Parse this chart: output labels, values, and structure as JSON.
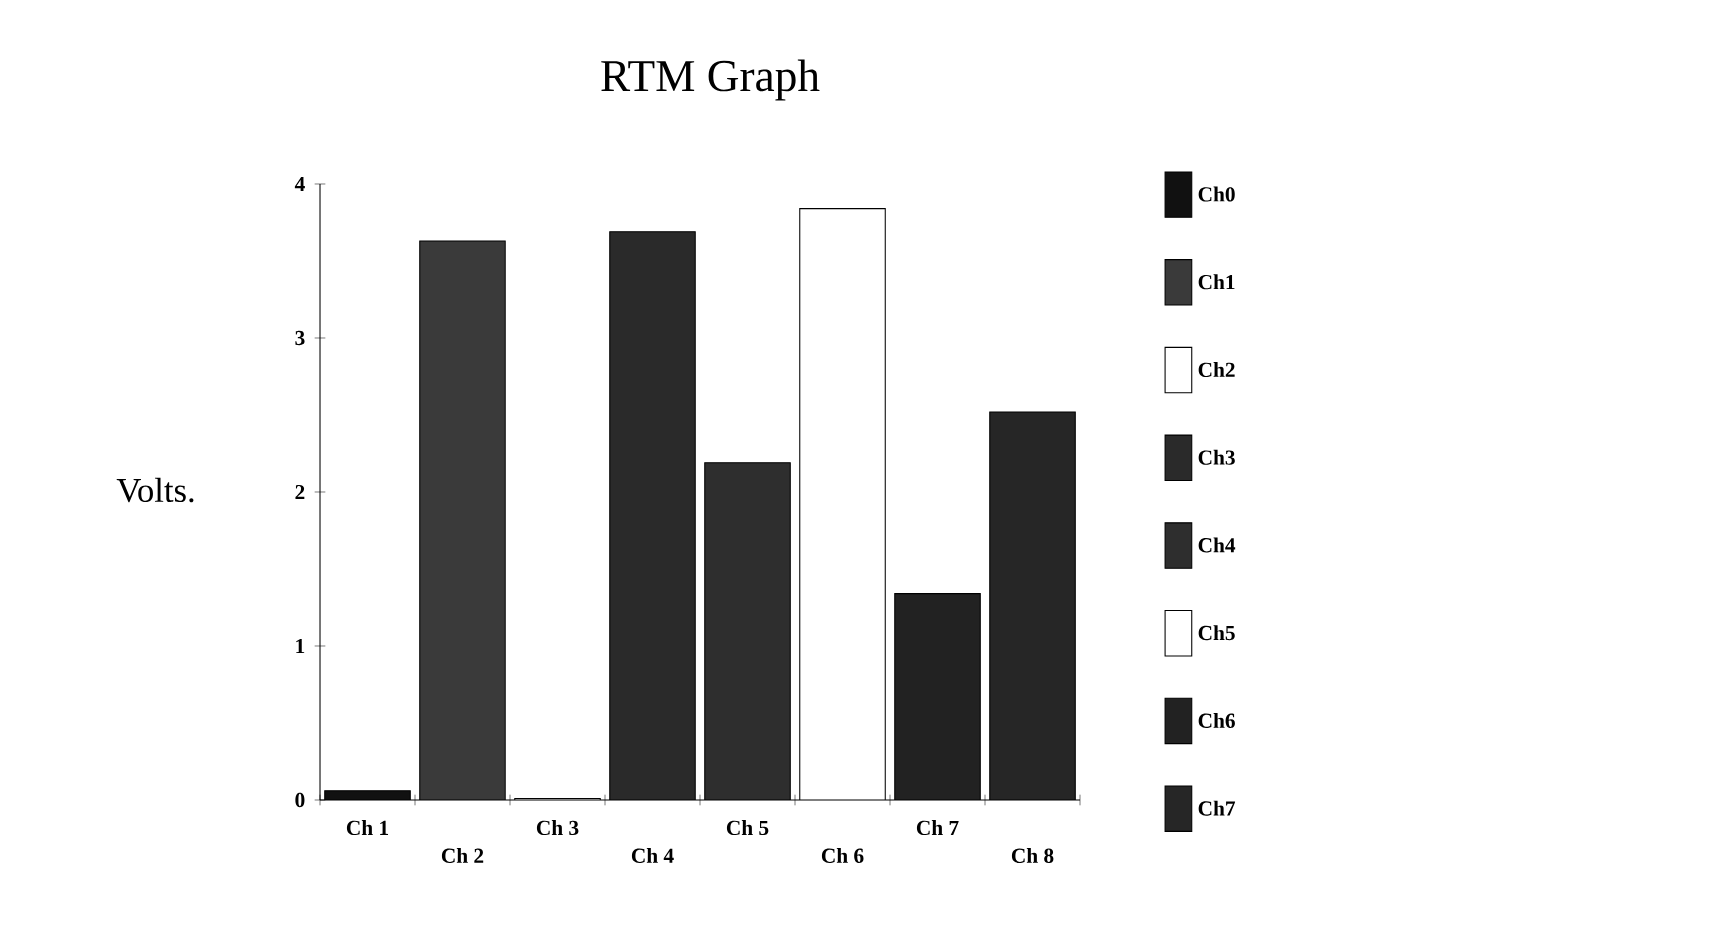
{
  "chart_data": {
    "type": "bar",
    "title": "RTM Graph",
    "ylabel": "Volts.",
    "categories": [
      "Ch 1",
      "Ch 2",
      "Ch 3",
      "Ch 4",
      "Ch 5",
      "Ch 6",
      "Ch 7",
      "Ch 8"
    ],
    "series": [
      {
        "name": "Ch0",
        "color": "#111111",
        "values": [
          0.06,
          null,
          null,
          null,
          null,
          null,
          null,
          null
        ]
      },
      {
        "name": "Ch1",
        "color": "#3a3a3a",
        "values": [
          null,
          3.63,
          null,
          null,
          null,
          null,
          null,
          null
        ]
      },
      {
        "name": "Ch2",
        "color": "#ffffff",
        "values": [
          null,
          null,
          0.01,
          null,
          null,
          null,
          null,
          null
        ]
      },
      {
        "name": "Ch3",
        "color": "#2a2a2a",
        "values": [
          null,
          null,
          null,
          3.69,
          null,
          null,
          null,
          null
        ]
      },
      {
        "name": "Ch4",
        "color": "#2e2e2e",
        "values": [
          null,
          null,
          null,
          null,
          2.19,
          null,
          null,
          null
        ]
      },
      {
        "name": "Ch5",
        "color": "#ffffff",
        "values": [
          null,
          null,
          null,
          null,
          null,
          3.84,
          null,
          null
        ]
      },
      {
        "name": "Ch6",
        "color": "#222222",
        "values": [
          null,
          null,
          null,
          null,
          null,
          null,
          1.34,
          null
        ]
      },
      {
        "name": "Ch7",
        "color": "#262626",
        "values": [
          null,
          null,
          null,
          null,
          null,
          null,
          null,
          2.52
        ]
      }
    ],
    "ylim": [
      0,
      4
    ],
    "yticks": [
      0,
      1,
      2,
      3,
      4
    ],
    "legend": "right",
    "grid": false
  }
}
